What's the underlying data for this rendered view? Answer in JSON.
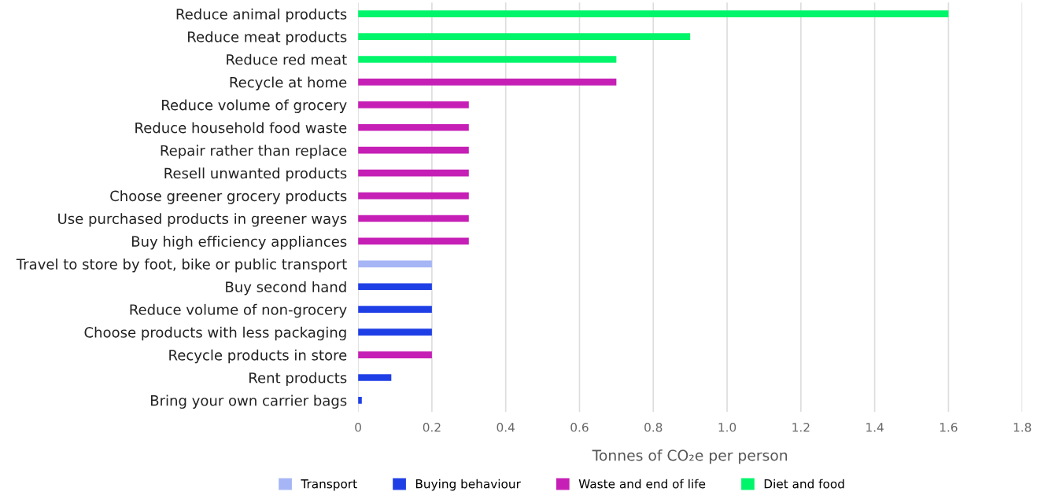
{
  "chart_data": {
    "type": "bar",
    "orientation": "horizontal",
    "categories": [
      "Reduce animal products",
      "Reduce meat products",
      "Reduce red meat",
      "Recycle at home",
      "Reduce volume of grocery",
      "Reduce household food waste",
      "Repair rather than replace",
      "Resell unwanted products",
      "Choose greener grocery products",
      "Use purchased products in greener ways",
      "Buy high efficiency appliances",
      "Travel to store by foot, bike or public transport",
      "Buy second hand",
      "Reduce volume of non-grocery",
      "Choose products with less packaging",
      "Recycle products in store",
      "Rent products",
      "Bring your own carrier bags"
    ],
    "series": [
      {
        "name": "Transport",
        "color": "#a6b5f5",
        "values": [
          null,
          null,
          null,
          null,
          null,
          null,
          null,
          null,
          null,
          null,
          null,
          0.2,
          null,
          null,
          null,
          null,
          null,
          null
        ]
      },
      {
        "name": "Buying behaviour",
        "color": "#1f3fe6",
        "values": [
          null,
          null,
          null,
          null,
          null,
          null,
          null,
          null,
          null,
          null,
          null,
          null,
          0.2,
          0.2,
          0.2,
          null,
          0.09,
          0.01
        ]
      },
      {
        "name": "Waste and end of life",
        "color": "#c51fb5",
        "values": [
          null,
          null,
          null,
          0.7,
          0.3,
          0.3,
          0.3,
          0.3,
          0.3,
          0.3,
          0.3,
          null,
          null,
          null,
          null,
          0.2,
          null,
          null
        ]
      },
      {
        "name": "Diet and food",
        "color": "#00f56a",
        "values": [
          1.6,
          0.9,
          0.7,
          null,
          null,
          null,
          null,
          null,
          null,
          null,
          null,
          null,
          null,
          null,
          null,
          null,
          null,
          null
        ]
      }
    ],
    "xlabel": "Tonnes of CO₂e per person",
    "xlim": [
      0,
      1.8
    ],
    "xticks": [
      0,
      0.2,
      0.4,
      0.6,
      0.8,
      {
        "value": 1.0,
        "label": "1.0"
      },
      1.2,
      1.4,
      1.6,
      1.8
    ],
    "grid": "x",
    "legend": "bottom"
  }
}
